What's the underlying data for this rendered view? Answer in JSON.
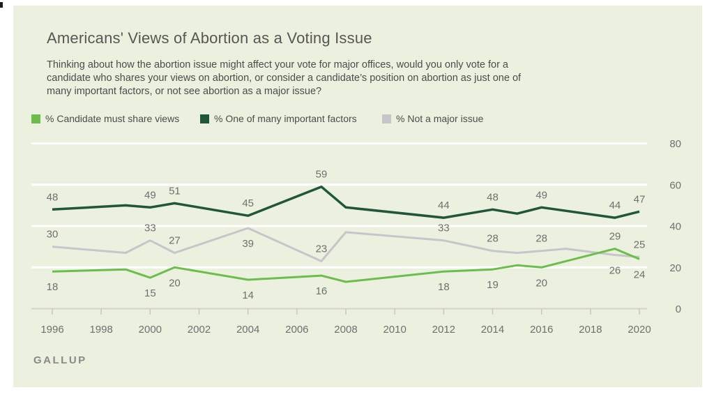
{
  "page": {
    "background": "#ffffff",
    "card_background": "#ecf1df"
  },
  "header": {
    "title": "Americans' Views of Abortion as a Voting Issue",
    "subtitle_lines": [
      "Thinking about how the abortion issue might affect your vote for major offices, would you only vote for a",
      "candidate who shares your views on abortion, or consider a candidate’s position on abortion as just one of",
      "many important factors, or not see abortion as a major issue?"
    ]
  },
  "legend": {
    "items": [
      {
        "label": "% Candidate must share views",
        "color": "#6cbe4c"
      },
      {
        "label": "% One of many important factors",
        "color": "#20573a"
      },
      {
        "label": "% Not a major issue",
        "color": "#c6c5ca"
      }
    ]
  },
  "chart_data": {
    "type": "line",
    "title": "Americans' Views of Abortion as a Voting Issue",
    "xlabel": "",
    "ylabel": "",
    "ylim": [
      0,
      80
    ],
    "xlim": [
      1996,
      2020
    ],
    "grid": "horizontal-white",
    "legend_position": "top",
    "x_axis": {
      "ticks": [
        1996,
        1998,
        2000,
        2002,
        2004,
        2006,
        2008,
        2010,
        2012,
        2014,
        2016,
        2018,
        2020
      ]
    },
    "y_axis": {
      "ticks": [
        0,
        20,
        40,
        60,
        80
      ]
    },
    "series": [
      {
        "name": "% Not a major issue",
        "color": "#c6c5ca",
        "stroke_width": 3,
        "points": [
          {
            "x": 1996,
            "y": 30,
            "label": "30",
            "label_pos": "above"
          },
          {
            "x": 1999,
            "y": 27
          },
          {
            "x": 2000,
            "y": 33,
            "label": "33",
            "label_pos": "above"
          },
          {
            "x": 2001,
            "y": 27,
            "label": "27",
            "label_pos": "above"
          },
          {
            "x": 2004,
            "y": 39,
            "label": "39",
            "label_pos": "below"
          },
          {
            "x": 2007,
            "y": 23,
            "label": "23",
            "label_pos": "above"
          },
          {
            "x": 2008,
            "y": 37
          },
          {
            "x": 2012,
            "y": 33,
            "label": "33",
            "label_pos": "above"
          },
          {
            "x": 2014,
            "y": 28,
            "label": "28",
            "label_pos": "above"
          },
          {
            "x": 2015,
            "y": 27
          },
          {
            "x": 2016,
            "y": 28,
            "label": "28",
            "label_pos": "above"
          },
          {
            "x": 2017,
            "y": 29
          },
          {
            "x": 2019,
            "y": 26,
            "label": "26",
            "label_pos": "below"
          },
          {
            "x": 2020,
            "y": 25,
            "label": "25",
            "label_pos": "above"
          }
        ]
      },
      {
        "name": "% One of many important factors",
        "color": "#20573a",
        "stroke_width": 3.5,
        "points": [
          {
            "x": 1996,
            "y": 48,
            "label": "48",
            "label_pos": "above"
          },
          {
            "x": 1999,
            "y": 50
          },
          {
            "x": 2000,
            "y": 49,
            "label": "49",
            "label_pos": "above"
          },
          {
            "x": 2001,
            "y": 51,
            "label": "51",
            "label_pos": "above"
          },
          {
            "x": 2004,
            "y": 45,
            "label": "45",
            "label_pos": "above"
          },
          {
            "x": 2007,
            "y": 59,
            "label": "59",
            "label_pos": "above"
          },
          {
            "x": 2008,
            "y": 49
          },
          {
            "x": 2012,
            "y": 44,
            "label": "44",
            "label_pos": "above"
          },
          {
            "x": 2014,
            "y": 48,
            "label": "48",
            "label_pos": "above"
          },
          {
            "x": 2015,
            "y": 46
          },
          {
            "x": 2016,
            "y": 49,
            "label": "49",
            "label_pos": "above"
          },
          {
            "x": 2019,
            "y": 44,
            "label": "44",
            "label_pos": "above"
          },
          {
            "x": 2020,
            "y": 47,
            "label": "47",
            "label_pos": "above"
          }
        ]
      },
      {
        "name": "% Candidate must share views",
        "color": "#6cbe4c",
        "stroke_width": 3,
        "points": [
          {
            "x": 1996,
            "y": 18,
            "label": "18",
            "label_pos": "below"
          },
          {
            "x": 1999,
            "y": 19
          },
          {
            "x": 2000,
            "y": 15,
            "label": "15",
            "label_pos": "below"
          },
          {
            "x": 2001,
            "y": 20,
            "label": "20",
            "label_pos": "below"
          },
          {
            "x": 2004,
            "y": 14,
            "label": "14",
            "label_pos": "below"
          },
          {
            "x": 2007,
            "y": 16,
            "label": "16",
            "label_pos": "below"
          },
          {
            "x": 2008,
            "y": 13
          },
          {
            "x": 2012,
            "y": 18,
            "label": "18",
            "label_pos": "below"
          },
          {
            "x": 2014,
            "y": 19,
            "label": "19",
            "label_pos": "below"
          },
          {
            "x": 2015,
            "y": 21
          },
          {
            "x": 2016,
            "y": 20,
            "label": "20",
            "label_pos": "below"
          },
          {
            "x": 2019,
            "y": 29,
            "label": "29",
            "label_pos": "above"
          },
          {
            "x": 2020,
            "y": 24,
            "label": "24",
            "label_pos": "below"
          }
        ]
      }
    ]
  },
  "footer": {
    "brand": "GALLUP"
  }
}
